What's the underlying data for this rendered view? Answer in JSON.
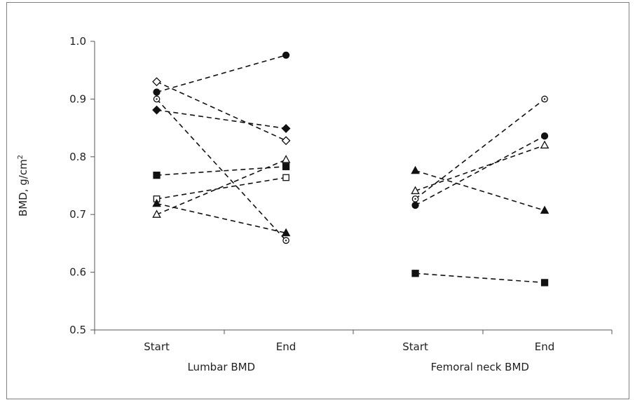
{
  "chart_data": {
    "type": "line",
    "title": "",
    "ylabel_main": "BMD, g/cm",
    "ylabel_sup": "2",
    "ylim": [
      0.5,
      1.0
    ],
    "yticks": [
      "1.0",
      "0.9",
      "0.8",
      "0.7",
      "0.6",
      "0.5"
    ],
    "grid": false,
    "groups": [
      {
        "label": "Lumbar BMD",
        "ticks": [
          "Start",
          "End"
        ],
        "lines": [
          {
            "marker": "filled-circle",
            "values": [
              0.912,
              0.976
            ]
          },
          {
            "marker": "open-diamond",
            "values": [
              0.93,
              0.828
            ]
          },
          {
            "marker": "open-circle-dot",
            "values": [
              0.9,
              0.655
            ]
          },
          {
            "marker": "filled-diamond",
            "values": [
              0.881,
              0.849
            ]
          },
          {
            "marker": "filled-square",
            "values": [
              0.768,
              0.783
            ]
          },
          {
            "marker": "open-square",
            "values": [
              0.727,
              0.764
            ]
          },
          {
            "marker": "filled-triangle",
            "values": [
              0.719,
              0.668
            ]
          },
          {
            "marker": "open-triangle",
            "values": [
              0.7,
              0.795
            ]
          }
        ]
      },
      {
        "label": "Femoral neck BMD",
        "ticks": [
          "Start",
          "End"
        ],
        "lines": [
          {
            "marker": "filled-triangle",
            "values": [
              0.776,
              0.707
            ]
          },
          {
            "marker": "open-triangle",
            "values": [
              0.741,
              0.82
            ]
          },
          {
            "marker": "open-circle-dot",
            "values": [
              0.727,
              0.9
            ]
          },
          {
            "marker": "filled-circle",
            "values": [
              0.716,
              0.836
            ]
          },
          {
            "marker": "filled-square",
            "values": [
              0.598,
              0.582
            ]
          }
        ]
      }
    ]
  }
}
